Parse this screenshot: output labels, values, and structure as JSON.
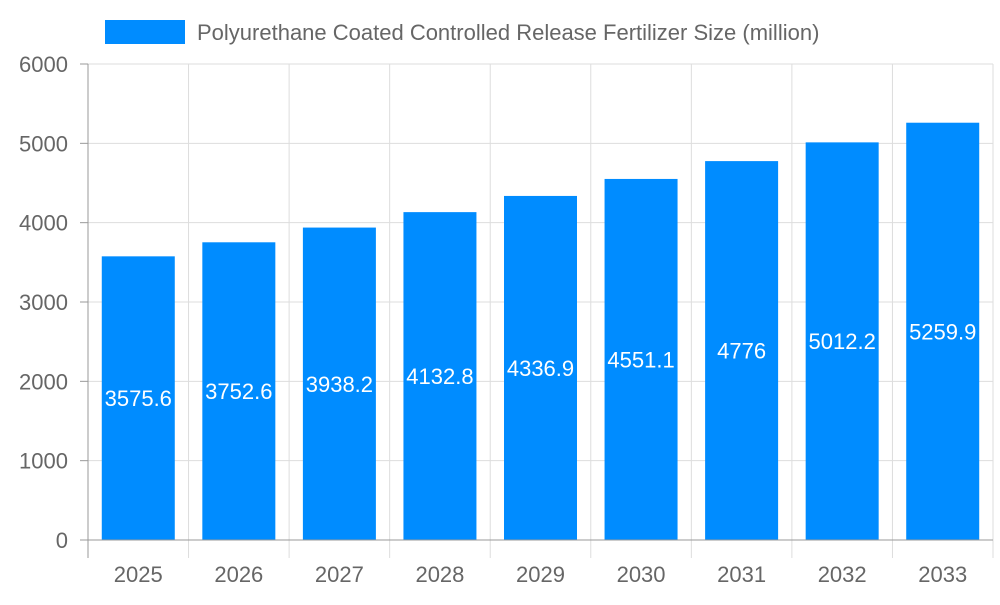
{
  "chart_data": {
    "type": "bar",
    "title": "",
    "xlabel": "",
    "ylabel": "",
    "categories": [
      "2025",
      "2026",
      "2027",
      "2028",
      "2029",
      "2030",
      "2031",
      "2032",
      "2033"
    ],
    "series": [
      {
        "name": "Polyurethane Coated Controlled Release Fertilizer Size (million)",
        "values": [
          3575.6,
          3752.6,
          3938.2,
          4132.8,
          4336.9,
          4551.1,
          4776,
          5012.2,
          5259.9
        ]
      }
    ],
    "ylim": [
      0,
      6000
    ],
    "yticks": [
      0,
      1000,
      2000,
      3000,
      4000,
      5000,
      6000
    ],
    "grid": true,
    "legend": "top",
    "data_labels": true,
    "colors": {
      "bar": "#008cff",
      "grid": "#dddddd",
      "axis": "#999999",
      "text": "#666666",
      "label": "#ffffff"
    }
  }
}
